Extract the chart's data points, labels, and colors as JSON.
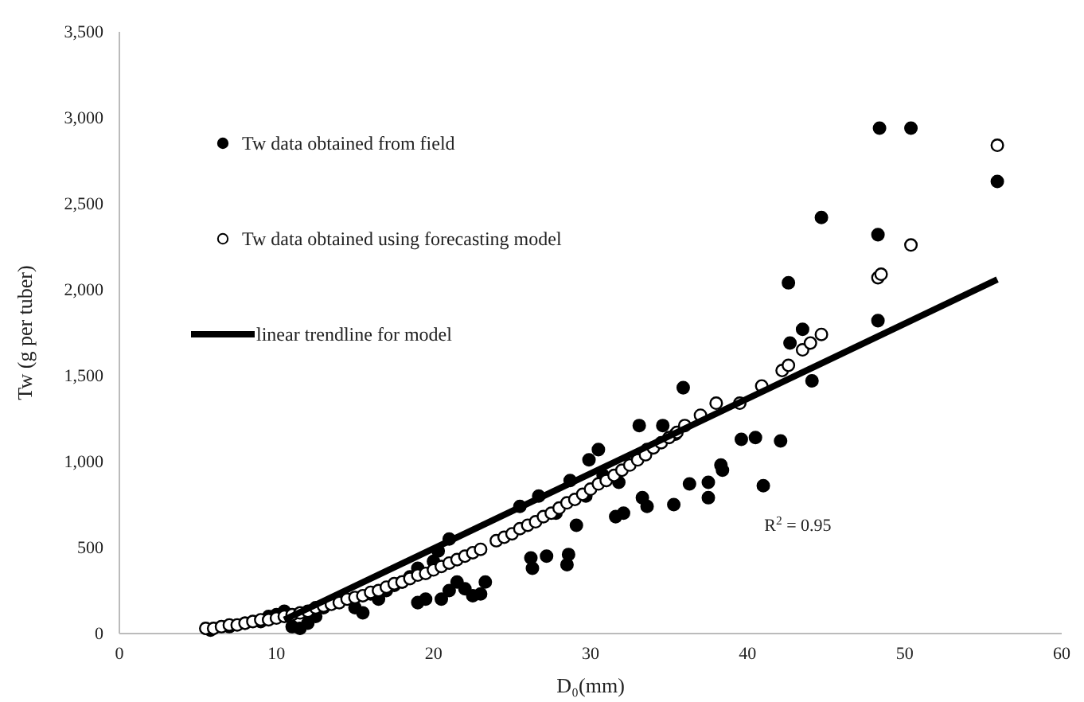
{
  "chart_data": {
    "type": "scatter",
    "xlabel": "D₀(mm)",
    "ylabel": "Tw (g per tuber)",
    "xlim": [
      0,
      60
    ],
    "xticks": [
      0,
      10,
      20,
      30,
      40,
      50,
      60
    ],
    "ylim": [
      0,
      3500
    ],
    "yticks": [
      0,
      500,
      {
        "value": 1000,
        "label": "1,000"
      },
      {
        "value": 1500,
        "label": "1,500"
      },
      {
        "value": 2000,
        "label": "2,000"
      },
      {
        "value": 2500,
        "label": "2,500"
      },
      {
        "value": 3000,
        "label": "3,000"
      },
      {
        "value": 3500,
        "label": "3,500"
      }
    ],
    "grid": false,
    "legend": "top left",
    "marker": "circle",
    "annotations": [
      "R$^{2}$ = 0.95"
    ],
    "series": [
      {
        "name": "Tw data obtained from field",
        "color": "#000000",
        "x": [
          5.8,
          7,
          8,
          9,
          9.5,
          10,
          10.5,
          11,
          11.5,
          12,
          12.5,
          13,
          15,
          15.5,
          16,
          16.5,
          17,
          17.5,
          18,
          18.5,
          19,
          19,
          19.5,
          20,
          20.3,
          20.5,
          21,
          21,
          21.5,
          22,
          22.5,
          23,
          23.3,
          26.2,
          26.3,
          27.2,
          28.6,
          28.5,
          25.5,
          26.7,
          27.8,
          29.1,
          28.7,
          29.9,
          30.5,
          29.7,
          30.8,
          31.6,
          32.1,
          31.8,
          33.1,
          33.3,
          33.6,
          33.6,
          34.6,
          35.4,
          35.3,
          36.3,
          37.5,
          37.5,
          38.3,
          38.4,
          39.6,
          41,
          42.1,
          48.4,
          50.4,
          55.9,
          44.7,
          48.3,
          42.6,
          48.3,
          43.5,
          42.7,
          44.1,
          35.9,
          40.5
        ],
        "values": [
          20,
          40,
          60,
          70,
          100,
          110,
          130,
          40,
          30,
          60,
          100,
          150,
          150,
          120,
          230,
          200,
          250,
          280,
          300,
          330,
          180,
          380,
          200,
          420,
          480,
          200,
          250,
          550,
          300,
          260,
          220,
          230,
          300,
          440,
          380,
          450,
          460,
          400,
          740,
          800,
          700,
          630,
          890,
          1010,
          1070,
          800,
          920,
          680,
          700,
          880,
          1210,
          790,
          740,
          1070,
          1210,
          1160,
          750,
          870,
          880,
          790,
          980,
          950,
          1130,
          860,
          1120,
          2940,
          2940,
          2630,
          2420,
          2320,
          2040,
          1820,
          1770,
          1690,
          1470,
          1430,
          1140
        ]
      },
      {
        "name": "Tw data obtained using forecasting model",
        "color": "#ffffff",
        "x": [
          5.5,
          6,
          6.5,
          7,
          7.5,
          8,
          8.5,
          9,
          9.5,
          10,
          10.5,
          11,
          11.5,
          12,
          12.5,
          13,
          13.5,
          14,
          14.5,
          15,
          15.5,
          16,
          16.5,
          17,
          17.5,
          18,
          18.5,
          19,
          19.5,
          20,
          20.5,
          21,
          21.5,
          22,
          22.5,
          23,
          24,
          24.5,
          25,
          25.5,
          26,
          26.5,
          27,
          27.5,
          28,
          28.5,
          29,
          29.5,
          30,
          30.5,
          31,
          31.5,
          32,
          32.5,
          33,
          33.5,
          34,
          34.5,
          35,
          35.5,
          36,
          37,
          38,
          39.5,
          40.9,
          42.2,
          42.6,
          43.5,
          44,
          44.7,
          48.3,
          48.5,
          50.4,
          55.9
        ],
        "values": [
          30,
          30,
          40,
          50,
          50,
          60,
          70,
          80,
          80,
          90,
          100,
          110,
          120,
          130,
          150,
          160,
          170,
          180,
          200,
          210,
          220,
          240,
          250,
          270,
          290,
          300,
          320,
          340,
          350,
          370,
          390,
          410,
          430,
          450,
          470,
          490,
          540,
          560,
          580,
          610,
          630,
          650,
          680,
          700,
          730,
          760,
          780,
          810,
          840,
          870,
          890,
          920,
          950,
          980,
          1010,
          1040,
          1080,
          1110,
          1140,
          1170,
          1210,
          1270,
          1340,
          1340,
          1440,
          1530,
          1560,
          1650,
          1690,
          1740,
          2070,
          2090,
          2260,
          2840
        ]
      },
      {
        "name": "linear trendline for model",
        "type": "line",
        "color": "#000000",
        "marker": "none",
        "x": [
          10.5,
          55.9
        ],
        "values": [
          80,
          2060
        ]
      }
    ]
  }
}
